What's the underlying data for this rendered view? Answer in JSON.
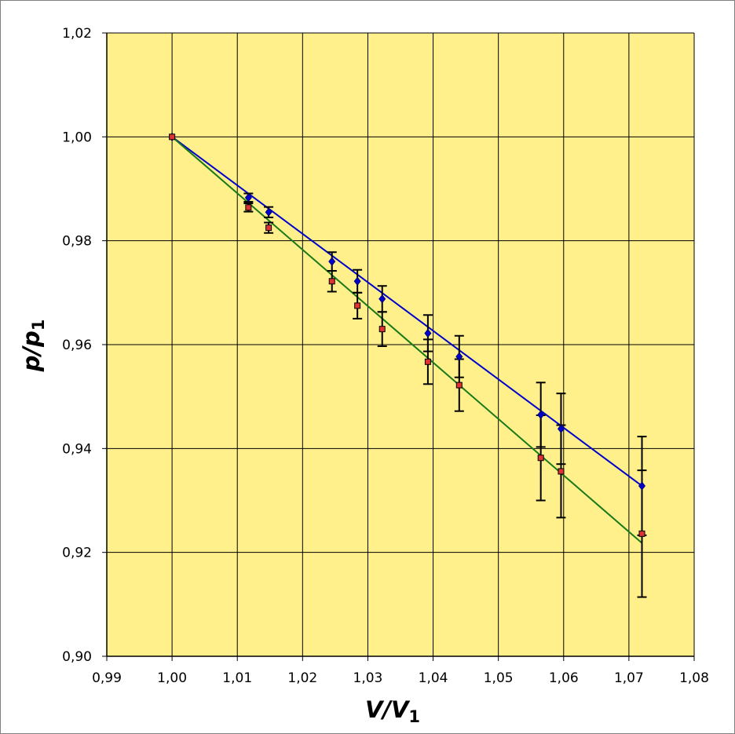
{
  "chart_data": {
    "type": "scatter",
    "x_axis": {
      "label_main": "V/V",
      "label_sub": "1",
      "min": 0.99,
      "max": 1.08,
      "ticks": [
        0.99,
        1.0,
        1.01,
        1.02,
        1.03,
        1.04,
        1.05,
        1.06,
        1.07,
        1.08
      ],
      "tick_labels": [
        "0,99",
        "1,00",
        "1,01",
        "1,02",
        "1,03",
        "1,04",
        "1,05",
        "1,06",
        "1,07",
        "1,08"
      ]
    },
    "y_axis": {
      "label_main": "p/p",
      "label_sub": "1",
      "min": 0.9,
      "max": 1.02,
      "ticks": [
        0.9,
        0.92,
        0.94,
        0.96,
        0.98,
        1.0,
        1.02
      ],
      "tick_labels": [
        "0,90",
        "0,92",
        "0,94",
        "0,96",
        "0,98",
        "1,00",
        "1,02"
      ]
    },
    "grid": true,
    "plot_background": "#FFF08C",
    "series": [
      {
        "marker": "diamond",
        "color": "#0000CC",
        "points": [
          {
            "x": 1.0,
            "y": 1.0,
            "err": 0.0
          },
          {
            "x": 1.0117,
            "y": 0.9883,
            "err": 0.0008
          },
          {
            "x": 1.0148,
            "y": 0.9855,
            "err": 0.001
          },
          {
            "x": 1.0245,
            "y": 0.976,
            "err": 0.0018
          },
          {
            "x": 1.0284,
            "y": 0.9722,
            "err": 0.0022
          },
          {
            "x": 1.0322,
            "y": 0.9688,
            "err": 0.0025
          },
          {
            "x": 1.0392,
            "y": 0.9622,
            "err": 0.0035
          },
          {
            "x": 1.044,
            "y": 0.9577,
            "err": 0.004
          },
          {
            "x": 1.0565,
            "y": 0.9465,
            "err": 0.0062
          },
          {
            "x": 1.0596,
            "y": 0.9438,
            "err": 0.0068
          },
          {
            "x": 1.072,
            "y": 0.9328,
            "err": 0.0095
          }
        ],
        "trend": {
          "x": [
            1.0,
            1.072
          ],
          "y": [
            1.0,
            0.9328
          ]
        }
      },
      {
        "marker": "square",
        "color": "#DD3333",
        "points": [
          {
            "x": 1.0,
            "y": 1.0,
            "err": 0.0
          },
          {
            "x": 1.0117,
            "y": 0.9864,
            "err": 0.0008
          },
          {
            "x": 1.0148,
            "y": 0.9825,
            "err": 0.001
          },
          {
            "x": 1.0245,
            "y": 0.9722,
            "err": 0.002
          },
          {
            "x": 1.0284,
            "y": 0.9675,
            "err": 0.0025
          },
          {
            "x": 1.0322,
            "y": 0.963,
            "err": 0.0033
          },
          {
            "x": 1.0392,
            "y": 0.9567,
            "err": 0.0043
          },
          {
            "x": 1.044,
            "y": 0.9522,
            "err": 0.005
          },
          {
            "x": 1.0565,
            "y": 0.9382,
            "err": 0.0082
          },
          {
            "x": 1.0596,
            "y": 0.9356,
            "err": 0.0089
          },
          {
            "x": 1.072,
            "y": 0.9236,
            "err": 0.0122
          }
        ],
        "trend": {
          "x": [
            1.0,
            1.072
          ],
          "y": [
            1.0,
            0.9218
          ]
        },
        "trend_color": "#1A7A1A"
      }
    ]
  }
}
